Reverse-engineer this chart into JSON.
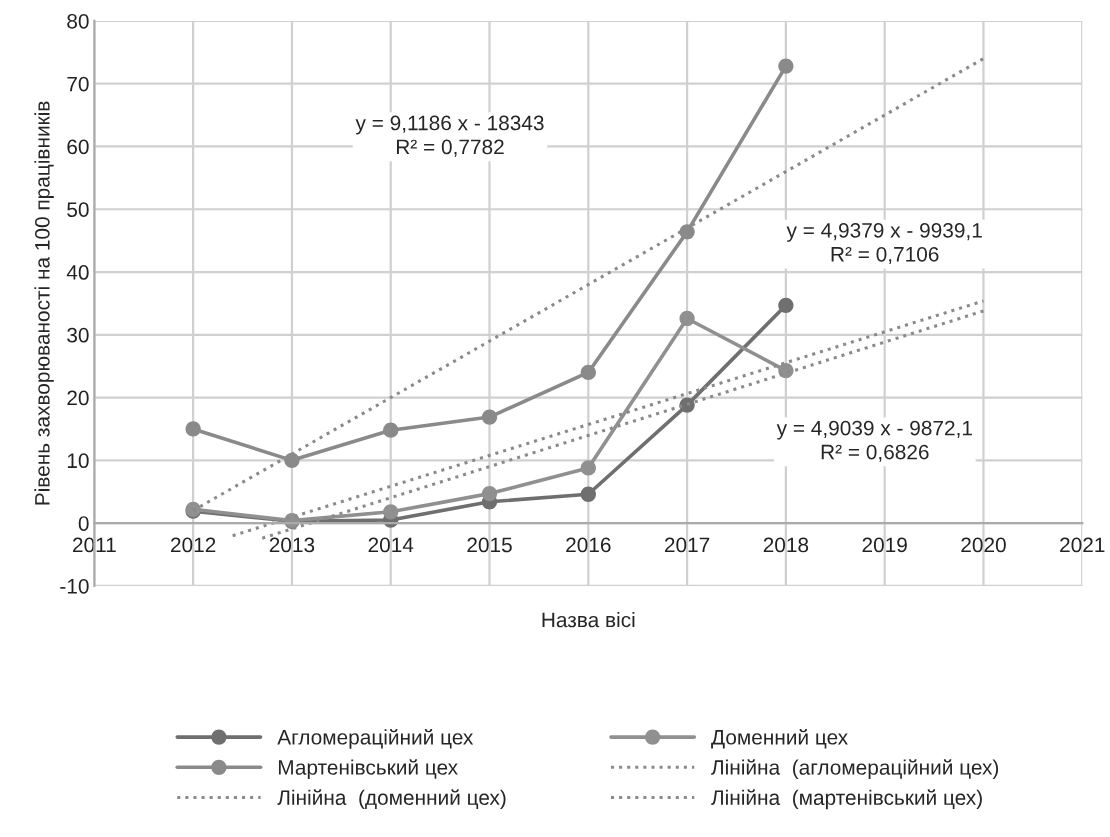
{
  "chart_data": {
    "type": "line",
    "xlabel": "Назва вісі",
    "ylabel": "Рівень захворюваності на 100 працівників",
    "x": [
      2012,
      2013,
      2014,
      2015,
      2016,
      2017,
      2018
    ],
    "xlim": [
      2011,
      2021
    ],
    "xticks": [
      2011,
      2012,
      2013,
      2014,
      2015,
      2016,
      2017,
      2018,
      2019,
      2020,
      2021
    ],
    "ylim": [
      -10,
      80
    ],
    "yticks": [
      -10,
      0,
      10,
      20,
      30,
      40,
      50,
      60,
      70,
      80
    ],
    "grid": true,
    "legend": "bottom",
    "marker": "circle",
    "series": [
      {
        "name": "Агломераційний цех",
        "color": "#6f6f6f",
        "values": [
          1.9,
          0.3,
          0.5,
          3.4,
          4.6,
          18.8,
          34.7
        ]
      },
      {
        "name": "Доменний цех",
        "color": "#909090",
        "values": [
          2.2,
          0.4,
          1.8,
          4.7,
          8.8,
          32.6,
          24.3
        ]
      },
      {
        "name": "Мартенівський цех",
        "color": "#8a8a8a",
        "values": [
          15,
          10,
          14.8,
          16.9,
          24,
          46.4,
          72.8
        ]
      },
      {
        "name": "Лінійна  (агломераційний цех)",
        "color": "#8a8a8a",
        "line_style": "dotted",
        "marker": "none",
        "x": [
          2012.4,
          2020
        ],
        "values": [
          -2,
          35.4
        ]
      },
      {
        "name": "Лінійна  (доменний цех)",
        "color": "#8a8a8a",
        "line_style": "dotted",
        "marker": "none",
        "x": [
          2012.7,
          2020
        ],
        "values": [
          -2.4,
          33.8
        ]
      },
      {
        "name": "Лінійна  (мартенівський цех)",
        "color": "#8a8a8a",
        "line_style": "dotted",
        "marker": "none",
        "x": [
          2012,
          2020
        ],
        "values": [
          2,
          74
        ]
      }
    ],
    "annotations": [
      "y = 9,1186 x - 18343\nR² = 0,7782",
      "y = 4,9379 x - 9939,1\nR² = 0,7106",
      "y = 4,9039 x - 9872,1\nR² = 0,6826"
    ]
  }
}
